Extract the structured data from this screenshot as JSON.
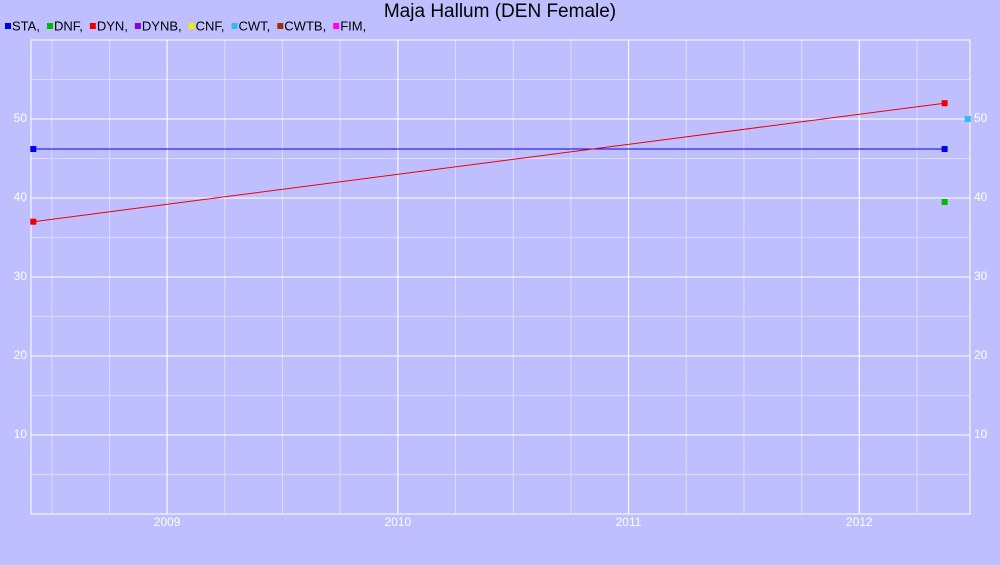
{
  "chart_data": {
    "type": "line",
    "title": "Maja Hallum (DEN Female)",
    "xlim": [
      2008.41,
      2012.48
    ],
    "xticks": [
      2009,
      2010,
      2011,
      2012
    ],
    "ylim": [
      0,
      60
    ],
    "yticks": [
      10,
      20,
      30,
      40,
      50
    ],
    "grid": true,
    "series": [
      {
        "name": "STA,",
        "color": "#0000ee",
        "x": [
          2008.42,
          2012.37
        ],
        "values": [
          46.2,
          46.2
        ]
      },
      {
        "name": "DNF,",
        "color": "#00bb00",
        "x": [
          2012.37
        ],
        "values": [
          39.5
        ]
      },
      {
        "name": "DYN,",
        "color": "#ee0000",
        "x": [
          2008.42,
          2012.37
        ],
        "values": [
          37,
          52
        ]
      },
      {
        "name": "DYNB,",
        "color": "#7f00ff",
        "x": [],
        "values": []
      },
      {
        "name": "CNF,",
        "color": "#eeee00",
        "x": [],
        "values": []
      },
      {
        "name": "CWT,",
        "color": "#33bbee",
        "x": [
          2012.47
        ],
        "values": [
          50
        ]
      },
      {
        "name": "CWTB,",
        "color": "#993300",
        "x": [],
        "values": []
      },
      {
        "name": "FIM,",
        "color": "#ff00ff",
        "x": [],
        "values": []
      }
    ]
  }
}
